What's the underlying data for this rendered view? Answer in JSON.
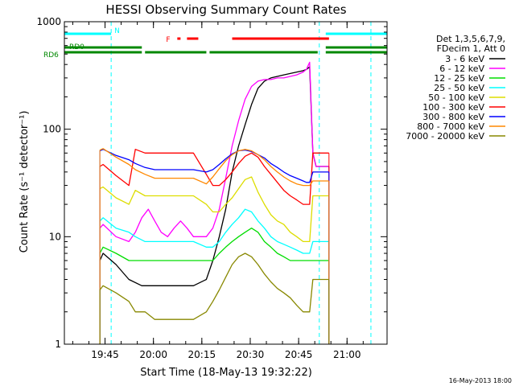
{
  "chart_data": {
    "type": "line",
    "title": "HESSI Observing Summary Count Rates",
    "xlabel": "Start Time (18-May-13 19:32:22)",
    "ylabel": "Count Rate (s⁻¹ detector⁻¹)",
    "yscale": "log",
    "ylim": [
      1,
      1000
    ],
    "xlim": [
      0,
      100
    ],
    "x_unit": "minutes after 19:32:22",
    "x_ticks": [
      {
        "x": 12.6,
        "label": "19:45"
      },
      {
        "x": 27.6,
        "label": "20:00"
      },
      {
        "x": 42.6,
        "label": "20:15"
      },
      {
        "x": 57.6,
        "label": "20:30"
      },
      {
        "x": 72.6,
        "label": "20:45"
      },
      {
        "x": 87.6,
        "label": "21:00"
      }
    ],
    "y_ticks": [
      {
        "y": 1,
        "label": "1"
      },
      {
        "y": 10,
        "label": "10"
      },
      {
        "y": 100,
        "label": "100"
      },
      {
        "y": 1000,
        "label": "1000"
      }
    ],
    "legend": {
      "placement": "right",
      "header": [
        "Det 1,3,5,6,7,9,",
        "FDecim 1, Att 0"
      ],
      "entries": [
        {
          "label": "3 - 6 keV",
          "color": "#000000"
        },
        {
          "label": "6 - 12 keV",
          "color": "#ff00ff"
        },
        {
          "label": "12 - 25 keV",
          "color": "#00dd00"
        },
        {
          "label": "25 - 50 keV",
          "color": "#00ffff"
        },
        {
          "label": "50 - 100 keV",
          "color": "#dddd00"
        },
        {
          "label": "100 - 300 keV",
          "color": "#ff0000"
        },
        {
          "label": "300 - 800 keV",
          "color": "#0000ff"
        },
        {
          "label": "800 - 7000 keV",
          "color": "#ff8800"
        },
        {
          "label": "7000 - 20000 keV",
          "color": "#888800"
        }
      ]
    },
    "series": [
      {
        "name": "3 - 6 keV",
        "color": "#000000",
        "x": [
          11,
          12,
          16,
          20,
          24,
          28,
          32,
          36,
          40,
          44,
          46,
          48,
          50,
          52,
          54,
          56,
          58,
          60,
          62,
          64,
          66,
          68,
          70,
          72,
          74,
          75,
          76,
          77,
          78,
          80,
          82
        ],
        "y": [
          6,
          7,
          5.5,
          4,
          3.5,
          3.5,
          3.5,
          3.5,
          3.5,
          4,
          6,
          10,
          18,
          40,
          70,
          110,
          170,
          240,
          280,
          300,
          310,
          320,
          330,
          340,
          350,
          360,
          380,
          60,
          45,
          45,
          45
        ]
      },
      {
        "name": "6 - 12 keV",
        "color": "#ff00ff",
        "x": [
          11,
          12,
          16,
          20,
          22,
          24,
          26,
          28,
          30,
          32,
          34,
          36,
          38,
          40,
          42,
          44,
          46,
          48,
          50,
          52,
          54,
          56,
          58,
          60,
          62,
          64,
          66,
          68,
          70,
          72,
          74,
          75,
          76,
          77,
          78,
          80,
          82
        ],
        "y": [
          12,
          13,
          10,
          9,
          11,
          15,
          18,
          14,
          11,
          10,
          12,
          14,
          12,
          10,
          10,
          10,
          12,
          18,
          35,
          70,
          120,
          190,
          250,
          280,
          290,
          290,
          300,
          300,
          310,
          320,
          340,
          360,
          420,
          60,
          45,
          45,
          45
        ]
      },
      {
        "name": "12 - 25 keV",
        "color": "#00dd00",
        "x": [
          11,
          12,
          16,
          20,
          22,
          25,
          28,
          32,
          36,
          40,
          44,
          46,
          48,
          50,
          52,
          54,
          56,
          58,
          60,
          62,
          64,
          66,
          68,
          70,
          72,
          74,
          75,
          76,
          77,
          78,
          80,
          82
        ],
        "y": [
          7,
          8,
          7,
          6,
          6,
          6,
          6,
          6,
          6,
          6,
          6,
          6,
          7,
          8,
          9,
          10,
          11,
          12,
          11,
          9,
          8,
          7,
          6.5,
          6,
          6,
          6,
          6,
          6,
          6,
          6,
          6,
          6
        ]
      },
      {
        "name": "25 - 50 keV",
        "color": "#00ffff",
        "x": [
          11,
          12,
          16,
          20,
          22,
          25,
          28,
          32,
          36,
          40,
          44,
          46,
          48,
          50,
          52,
          54,
          56,
          58,
          60,
          62,
          64,
          66,
          68,
          70,
          72,
          74,
          75,
          76,
          77,
          78,
          80,
          82
        ],
        "y": [
          14,
          15,
          12,
          11,
          10,
          9,
          9,
          9,
          9,
          9,
          8,
          8,
          9,
          11,
          13,
          15,
          18,
          17,
          14,
          12,
          10,
          9,
          8.5,
          8,
          7.5,
          7,
          7,
          7,
          9,
          9,
          9,
          9
        ]
      },
      {
        "name": "50 - 100 keV",
        "color": "#dddd00",
        "x": [
          11,
          12,
          16,
          20,
          22,
          25,
          28,
          32,
          36,
          40,
          44,
          46,
          48,
          50,
          52,
          54,
          56,
          58,
          60,
          62,
          64,
          66,
          68,
          70,
          72,
          74,
          75,
          76,
          77,
          78,
          80,
          82
        ],
        "y": [
          28,
          29,
          23,
          20,
          27,
          24,
          24,
          24,
          24,
          24,
          20,
          17,
          17,
          20,
          23,
          28,
          34,
          36,
          26,
          20,
          16,
          14,
          13,
          11,
          10,
          9,
          9,
          9,
          24,
          24,
          24,
          24
        ]
      },
      {
        "name": "100 - 300 keV",
        "color": "#ff0000",
        "x": [
          11,
          12,
          16,
          20,
          22,
          25,
          28,
          32,
          36,
          40,
          44,
          46,
          48,
          50,
          52,
          54,
          56,
          58,
          60,
          62,
          64,
          66,
          68,
          70,
          72,
          74,
          75,
          76,
          77,
          78,
          80,
          82
        ],
        "y": [
          45,
          47,
          37,
          30,
          65,
          60,
          60,
          60,
          60,
          60,
          38,
          30,
          30,
          34,
          40,
          48,
          56,
          60,
          55,
          45,
          38,
          32,
          27,
          24,
          22,
          20,
          20,
          20,
          60,
          60,
          60,
          60
        ]
      },
      {
        "name": "300 - 800 keV",
        "color": "#0000ff",
        "x": [
          11,
          12,
          16,
          20,
          22,
          25,
          28,
          32,
          36,
          40,
          44,
          46,
          48,
          50,
          52,
          54,
          56,
          58,
          60,
          62,
          64,
          66,
          68,
          70,
          72,
          74,
          75,
          76,
          77,
          78,
          80,
          82
        ],
        "y": [
          63,
          65,
          57,
          52,
          48,
          44,
          42,
          42,
          42,
          42,
          40,
          42,
          47,
          53,
          59,
          63,
          64,
          62,
          58,
          54,
          48,
          44,
          40,
          37,
          35,
          33,
          32,
          32,
          40,
          40,
          40,
          40
        ]
      },
      {
        "name": "800 - 7000 keV",
        "color": "#ff8800",
        "x": [
          11,
          12,
          16,
          20,
          22,
          25,
          28,
          32,
          36,
          40,
          44,
          46,
          48,
          50,
          52,
          54,
          56,
          58,
          60,
          62,
          64,
          66,
          68,
          70,
          72,
          74,
          75,
          76,
          77,
          78,
          80,
          82
        ],
        "y": [
          64,
          66,
          55,
          47,
          42,
          38,
          35,
          35,
          35,
          35,
          31,
          36,
          43,
          51,
          58,
          63,
          65,
          63,
          58,
          52,
          45,
          40,
          36,
          33,
          31,
          30,
          30,
          30,
          33,
          33,
          33,
          33
        ]
      },
      {
        "name": "7000 - 20000 keV",
        "color": "#888800",
        "x": [
          11,
          12,
          16,
          20,
          22,
          25,
          28,
          32,
          36,
          40,
          44,
          46,
          48,
          50,
          52,
          54,
          56,
          58,
          60,
          62,
          64,
          66,
          68,
          70,
          72,
          74,
          75,
          76,
          77,
          78,
          80,
          82
        ],
        "y": [
          3.2,
          3.5,
          3,
          2.5,
          2,
          2,
          1.7,
          1.7,
          1.7,
          1.7,
          2,
          2.5,
          3.2,
          4.2,
          5.5,
          6.5,
          7,
          6.5,
          5.5,
          4.5,
          3.8,
          3.3,
          3,
          2.7,
          2.3,
          2,
          2,
          2,
          4,
          4,
          4,
          4
        ]
      }
    ],
    "status_bars": [
      {
        "label": "N",
        "color": "#00ffff",
        "segments": [
          [
            0,
            14.5
          ],
          [
            81,
            100
          ]
        ]
      },
      {
        "label": "F",
        "color": "#ff0000",
        "segments": [
          [
            35,
            36
          ],
          [
            38,
            41.5
          ],
          [
            52,
            82
          ]
        ]
      },
      {
        "label": "RD0",
        "color": "#008800",
        "segments": [
          [
            0,
            24
          ],
          [
            81,
            100
          ]
        ]
      },
      {
        "label": "RD6",
        "color": "#008800",
        "segments": [
          [
            0,
            24
          ],
          [
            25,
            44
          ],
          [
            45,
            78.5
          ],
          [
            81,
            100
          ]
        ]
      }
    ],
    "vertical_markers": [
      {
        "x": 14.5,
        "color": "#00ffff"
      },
      {
        "x": 79,
        "color": "#00ffff"
      },
      {
        "x": 95,
        "color": "#00ffff"
      }
    ],
    "timestamp": "16-May-2013 18:00"
  }
}
